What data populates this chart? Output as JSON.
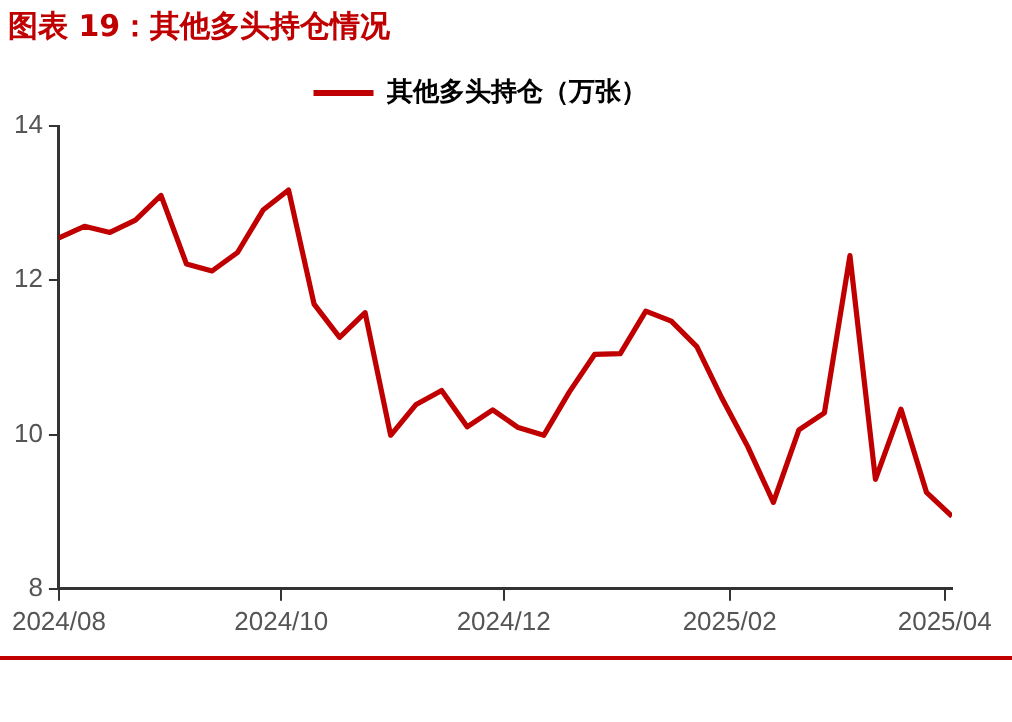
{
  "chart_data": {
    "type": "line",
    "title": "图表 19：其他多头持仓情况",
    "x": [
      "2024-08-01",
      "2024-08-08",
      "2024-08-15",
      "2024-08-22",
      "2024-08-29",
      "2024-09-05",
      "2024-09-12",
      "2024-09-19",
      "2024-09-26",
      "2024-10-03",
      "2024-10-10",
      "2024-10-17",
      "2024-10-24",
      "2024-10-31",
      "2024-11-07",
      "2024-11-14",
      "2024-11-21",
      "2024-11-28",
      "2024-12-05",
      "2024-12-12",
      "2024-12-19",
      "2024-12-26",
      "2025-01-02",
      "2025-01-09",
      "2025-01-16",
      "2025-01-23",
      "2025-01-30",
      "2025-02-06",
      "2025-02-13",
      "2025-02-20",
      "2025-02-27",
      "2025-03-06",
      "2025-03-13",
      "2025-03-20",
      "2025-03-27",
      "2025-04-03"
    ],
    "series": [
      {
        "name": "其他多头持仓（万张）",
        "color": "#c00000",
        "values": [
          12.55,
          12.7,
          12.62,
          12.78,
          13.1,
          12.21,
          12.12,
          12.36,
          12.91,
          13.17,
          11.69,
          11.26,
          11.58,
          9.99,
          10.39,
          10.57,
          10.1,
          10.32,
          10.09,
          9.99,
          10.55,
          11.04,
          11.05,
          11.6,
          11.47,
          11.14,
          10.46,
          9.84,
          9.12,
          10.06,
          10.28,
          12.32,
          9.42,
          10.33,
          9.25,
          8.94
        ]
      }
    ],
    "xlim": [
      "2024-08-01",
      "2025-04-03"
    ],
    "xticks": [
      {
        "value": "2024-08-01",
        "label": "2024/08"
      },
      {
        "value": "2024-10-01",
        "label": "2024/10"
      },
      {
        "value": "2024-12-01",
        "label": "2024/12"
      },
      {
        "value": "2025-02-01",
        "label": "2025/02"
      },
      {
        "value": "2025-04-01",
        "label": "2025/04"
      }
    ],
    "ylim": [
      8,
      14
    ],
    "yticks": [
      8,
      10,
      12,
      14
    ],
    "grid": false,
    "legend": "top",
    "marker": "none",
    "line_style": "solid"
  }
}
